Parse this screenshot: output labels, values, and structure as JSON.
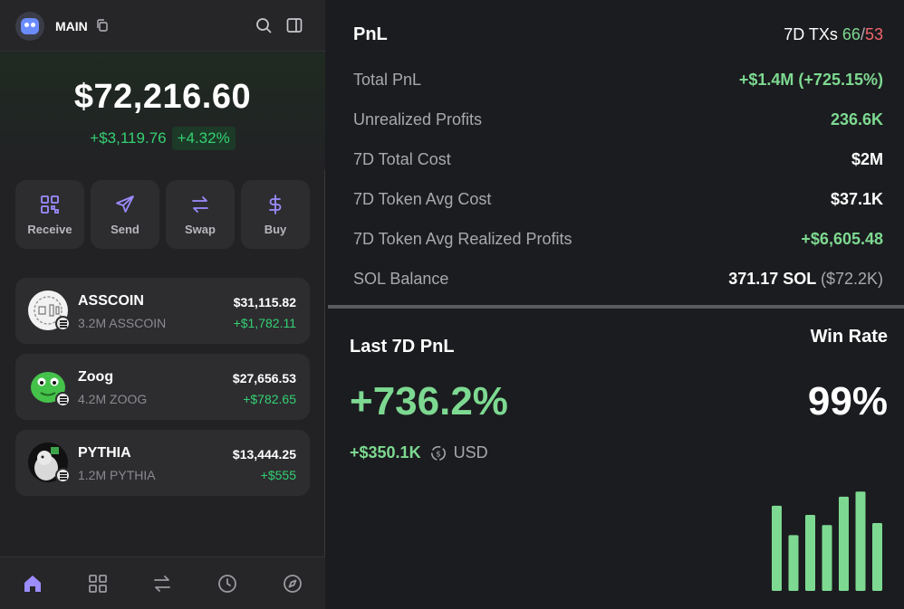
{
  "wallet": {
    "account_name": "MAIN",
    "balance": "$72,216.60",
    "change_abs": "+$3,119.76",
    "change_pct": "+4.32%",
    "actions": [
      {
        "label": "Receive",
        "icon": "qr-code-icon"
      },
      {
        "label": "Send",
        "icon": "send-icon"
      },
      {
        "label": "Swap",
        "icon": "swap-icon"
      },
      {
        "label": "Buy",
        "icon": "dollar-icon"
      }
    ],
    "tokens": [
      {
        "name": "ASSCOIN",
        "amount": "3.2M ASSCOIN",
        "value": "$31,115.82",
        "pnl": "+$1,782.11"
      },
      {
        "name": "Zoog",
        "amount": "4.2M ZOOG",
        "value": "$27,656.53",
        "pnl": "+$782.65"
      },
      {
        "name": "PYTHIA",
        "amount": "1.2M PYTHIA",
        "value": "$13,444.25",
        "pnl": "+$555"
      }
    ],
    "nav": [
      "home-icon",
      "grid-icon",
      "swap-icon",
      "clock-icon",
      "compass-icon"
    ]
  },
  "pnl": {
    "title": "PnL",
    "tx_label": "7D TXs",
    "tx_buys": "66",
    "tx_sep": "/",
    "tx_sells": "53",
    "rows": [
      {
        "label": "Total PnL",
        "value": "+$1.4M (+725.15%)",
        "value_extra": ""
      },
      {
        "label": "Unrealized Profits",
        "value": "236.6K",
        "value_extra": ""
      },
      {
        "label": "7D Total Cost",
        "value": "$2M",
        "value_extra": ""
      },
      {
        "label": "7D Token Avg Cost",
        "value": "$37.1K",
        "value_extra": ""
      },
      {
        "label": "7D Token Avg Realized Profits",
        "value": "+$6,605.48",
        "value_extra": ""
      },
      {
        "label": "SOL Balance",
        "value": "371.17 SOL",
        "value_extra": "($72.2K)"
      }
    ]
  },
  "last7d": {
    "title": "Last 7D PnL",
    "pct": "+736.2%",
    "usd_amount": "+$350.1K",
    "currency": "USD",
    "winrate_title": "Win Rate",
    "winrate": "99%",
    "bar_values": [
      0.84,
      0.55,
      0.75,
      0.65,
      0.93,
      0.98,
      0.67
    ],
    "bar_color": "#7dd991"
  }
}
